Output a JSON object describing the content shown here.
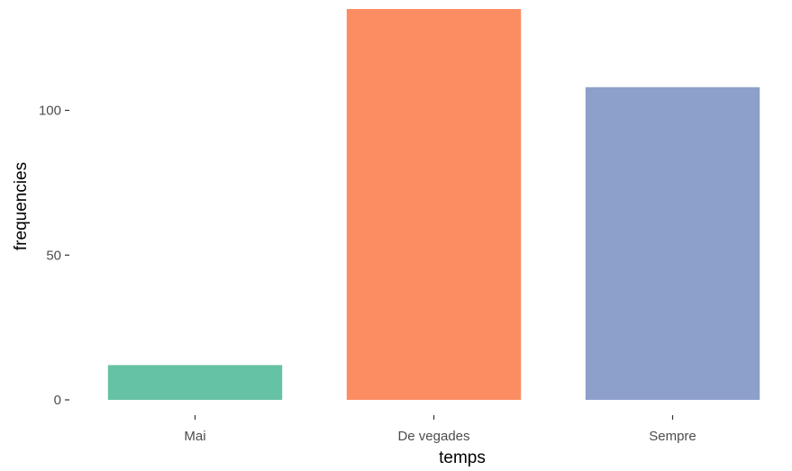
{
  "chart_data": {
    "type": "bar",
    "title": "",
    "xlabel": "temps",
    "ylabel": "frequencies",
    "categories": [
      "Mai",
      "De vegades",
      "Sempre"
    ],
    "values": [
      12,
      135,
      108
    ],
    "colors": [
      "#66c2a5",
      "#fc8d62",
      "#8da0cb"
    ],
    "ylim": [
      0,
      135
    ],
    "yticks": [
      0,
      50,
      100
    ],
    "ytick_labels": [
      "0",
      "50",
      "100"
    ],
    "grid": false,
    "legend": "none"
  }
}
